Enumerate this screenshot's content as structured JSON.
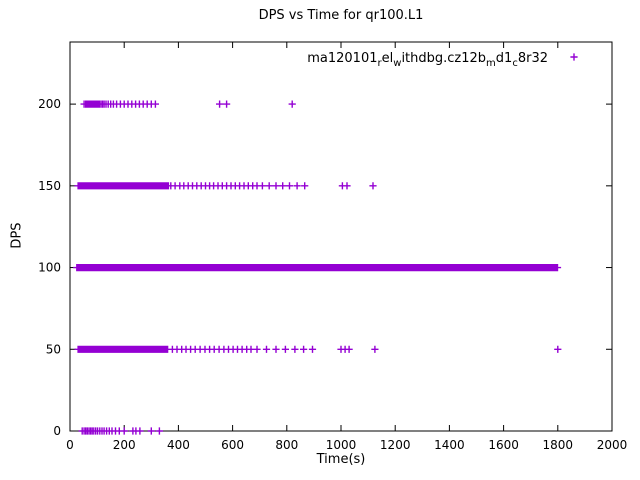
{
  "window": {
    "background": "#ffffff"
  },
  "chart_data": {
    "type": "scatter",
    "title": "DPS vs Time for qr100.L1",
    "xlabel": "Time(s)",
    "ylabel": "DPS",
    "xlim": [
      0,
      2000
    ],
    "ylim": [
      0,
      238
    ],
    "x_ticks": [
      0,
      200,
      400,
      600,
      800,
      1000,
      1200,
      1400,
      1600,
      1800,
      2000
    ],
    "y_ticks": [
      0,
      50,
      100,
      150,
      200
    ],
    "grid": false,
    "legend_position": "top-right-inside",
    "marker": "plus",
    "marker_color": "#9400D3",
    "axis_color": "#000000",
    "series": [
      {
        "name": "ma120101_rel_withdbg.cz12b_md1_c8r32",
        "name_segments": [
          {
            "text": "ma120101",
            "sub": false
          },
          {
            "text": "r",
            "sub": true
          },
          {
            "text": "el",
            "sub": false
          },
          {
            "text": "w",
            "sub": true
          },
          {
            "text": "ithdbg.cz12b",
            "sub": false
          },
          {
            "text": "m",
            "sub": true
          },
          {
            "text": "d1",
            "sub": false
          },
          {
            "text": "c",
            "sub": true
          },
          {
            "text": "8r32",
            "sub": false
          }
        ],
        "bands": [
          {
            "y": 0,
            "x": [
              45,
              52,
              58,
              64,
              70,
              76,
              82,
              88,
              95,
              102,
              110,
              118,
              126,
              135,
              145,
              155,
              168,
              182,
              200,
              232,
              243,
              258,
              300,
              330
            ]
          },
          {
            "y": 50,
            "x_dense": [
              30,
              360,
              3
            ],
            "x": [
              378,
              395,
              412,
              428,
              445,
              462,
              480,
              498,
              515,
              532,
              550,
              568,
              585,
              602,
              618,
              635,
              652,
              668,
              690,
              725,
              760,
              795,
              830,
              862,
              895,
              1000,
              1015,
              1030,
              1125,
              1800
            ]
          },
          {
            "y": 100,
            "x_dense": [
              25,
              1800,
              2
            ],
            "x": []
          },
          {
            "y": 150,
            "x_dense": [
              30,
              365,
              3
            ],
            "x": [
              372,
              388,
              405,
              420,
              436,
              452,
              468,
              484,
              500,
              515,
              530,
              546,
              562,
              578,
              594,
              610,
              626,
              642,
              658,
              674,
              690,
              710,
              735,
              760,
              785,
              810,
              838,
              866,
              1005,
              1022,
              1118
            ]
          },
          {
            "y": 200,
            "x": [
              52,
              58,
              63,
              68,
              73,
              78,
              83,
              88,
              93,
              98,
              103,
              108,
              114,
              120,
              126,
              133,
              141,
              150,
              160,
              172,
              186,
              200,
              214,
              228,
              242,
              256,
              270,
              285,
              300,
              315,
              552,
              578,
              820
            ]
          }
        ]
      }
    ]
  }
}
